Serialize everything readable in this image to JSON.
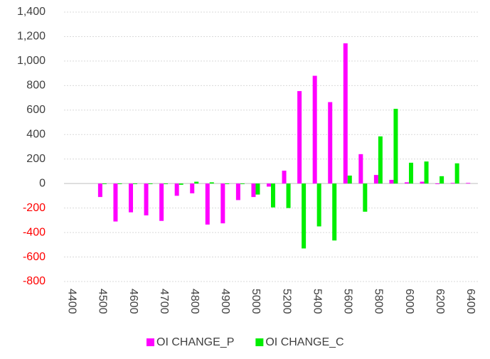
{
  "chart_data": {
    "type": "bar",
    "categories": [
      "4400",
      null,
      "4500",
      null,
      "4600",
      null,
      "4700",
      null,
      "4800",
      null,
      "4900",
      null,
      "5000",
      null,
      "5200",
      null,
      "5400",
      null,
      "5600",
      null,
      "5800",
      null,
      "6000",
      null,
      "6200",
      null,
      "6400"
    ],
    "series": [
      {
        "name": "OI CHANGE_P",
        "color": "#ff00ff",
        "values": [
          null,
          null,
          -110,
          -310,
          -235,
          -260,
          -305,
          -100,
          -80,
          -335,
          -325,
          -135,
          -110,
          -25,
          105,
          755,
          880,
          665,
          1145,
          240,
          70,
          30,
          10,
          15,
          -5,
          5,
          5
        ]
      },
      {
        "name": "OI CHANGE_C",
        "color": "#00ee00",
        "values": [
          null,
          null,
          -5,
          -5,
          -5,
          -5,
          -5,
          -10,
          15,
          10,
          -5,
          -5,
          -90,
          -195,
          -200,
          -530,
          -350,
          -465,
          65,
          -230,
          385,
          610,
          170,
          180,
          60,
          165,
          null
        ]
      }
    ],
    "ylim": [
      -800,
      1400
    ],
    "yticks": [
      {
        "value": -800,
        "label": "-800"
      },
      {
        "value": -600,
        "label": "-600"
      },
      {
        "value": -400,
        "label": "-400"
      },
      {
        "value": -200,
        "label": "-200"
      },
      0,
      200,
      400,
      600,
      800,
      {
        "value": 1000,
        "label": "1,000"
      },
      {
        "value": 1200,
        "label": "1,200"
      },
      {
        "value": 1400,
        "label": "1,400"
      }
    ],
    "negative_tick_color": "#ff0000",
    "grid": true,
    "legend": "bottom"
  }
}
